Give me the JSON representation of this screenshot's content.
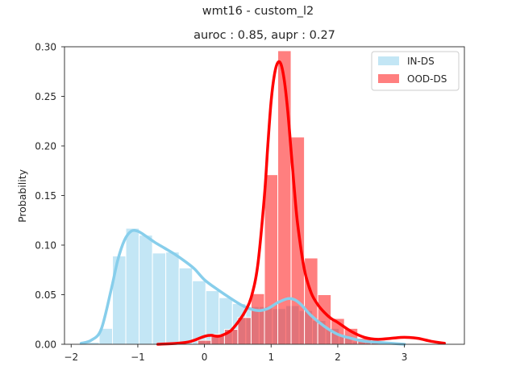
{
  "figure": {
    "suptitle": "wmt16 - custom_l2"
  },
  "chart_data": {
    "type": "histogram",
    "title": "auroc : 0.85, aupr : 0.27",
    "xlabel": "",
    "ylabel": "Probability",
    "xlim": [
      -2.1,
      3.9
    ],
    "ylim": [
      0,
      0.3
    ],
    "x_ticks": [
      -2,
      -1,
      0,
      1,
      2,
      3
    ],
    "x_tick_labels": [
      "−2",
      "−1",
      "0",
      "1",
      "2",
      "3"
    ],
    "y_ticks": [
      0,
      0.05,
      0.1,
      0.15,
      0.2,
      0.25,
      0.3
    ],
    "y_tick_labels": [
      "0.00",
      "0.05",
      "0.10",
      "0.15",
      "0.20",
      "0.25",
      "0.30"
    ],
    "grid": false,
    "legend_position": "top-right",
    "series": [
      {
        "name": "IN-DS",
        "color": "#87ceeb",
        "bar_opacity": 0.5,
        "bins": [
          {
            "x0": -1.78,
            "x1": -1.58,
            "value": 0.002
          },
          {
            "x0": -1.58,
            "x1": -1.38,
            "value": 0.016
          },
          {
            "x0": -1.38,
            "x1": -1.18,
            "value": 0.089
          },
          {
            "x0": -1.18,
            "x1": -0.98,
            "value": 0.117
          },
          {
            "x0": -0.98,
            "x1": -0.78,
            "value": 0.11
          },
          {
            "x0": -0.78,
            "x1": -0.58,
            "value": 0.092
          },
          {
            "x0": -0.58,
            "x1": -0.38,
            "value": 0.093
          },
          {
            "x0": -0.38,
            "x1": -0.18,
            "value": 0.077
          },
          {
            "x0": -0.18,
            "x1": 0.02,
            "value": 0.064
          },
          {
            "x0": 0.02,
            "x1": 0.22,
            "value": 0.054
          },
          {
            "x0": 0.22,
            "x1": 0.42,
            "value": 0.047
          },
          {
            "x0": 0.42,
            "x1": 0.62,
            "value": 0.041
          },
          {
            "x0": 0.62,
            "x1": 0.82,
            "value": 0.038
          },
          {
            "x0": 0.82,
            "x1": 1.02,
            "value": 0.038
          },
          {
            "x0": 1.02,
            "x1": 1.22,
            "value": 0.036
          },
          {
            "x0": 1.22,
            "x1": 1.42,
            "value": 0.039
          },
          {
            "x0": 1.42,
            "x1": 1.62,
            "value": 0.034
          },
          {
            "x0": 1.62,
            "x1": 1.82,
            "value": 0.024
          },
          {
            "x0": 1.82,
            "x1": 2.02,
            "value": 0.016
          },
          {
            "x0": 2.02,
            "x1": 2.22,
            "value": 0.008
          },
          {
            "x0": 2.22,
            "x1": 2.42,
            "value": 0.003
          },
          {
            "x0": 2.42,
            "x1": 2.62,
            "value": 0.002
          },
          {
            "x0": 2.62,
            "x1": 2.82,
            "value": 0.002
          },
          {
            "x0": 2.82,
            "x1": 3.02,
            "value": 0.001
          }
        ],
        "kde": {
          "x": [
            -1.85,
            -1.7,
            -1.55,
            -1.4,
            -1.3,
            -1.2,
            -1.1,
            -1.0,
            -0.9,
            -0.75,
            -0.6,
            -0.45,
            -0.3,
            -0.15,
            0.0,
            0.2,
            0.4,
            0.6,
            0.8,
            0.95,
            1.1,
            1.25,
            1.35,
            1.45,
            1.6,
            1.8,
            2.0,
            2.2,
            2.4,
            2.6,
            2.8,
            3.0
          ],
          "y": [
            0.001,
            0.004,
            0.015,
            0.055,
            0.085,
            0.105,
            0.114,
            0.114,
            0.11,
            0.103,
            0.097,
            0.091,
            0.084,
            0.076,
            0.065,
            0.055,
            0.046,
            0.038,
            0.034,
            0.036,
            0.042,
            0.046,
            0.045,
            0.04,
            0.029,
            0.018,
            0.01,
            0.006,
            0.003,
            0.002,
            0.001,
            0.0
          ]
        }
      },
      {
        "name": "OOD-DS",
        "color": "#ff0000",
        "bar_opacity": 0.5,
        "bins": [
          {
            "x0": -0.1,
            "x1": 0.1,
            "value": 0.004
          },
          {
            "x0": 0.1,
            "x1": 0.3,
            "value": 0.01
          },
          {
            "x0": 0.3,
            "x1": 0.5,
            "value": 0.015
          },
          {
            "x0": 0.5,
            "x1": 0.7,
            "value": 0.027
          },
          {
            "x0": 0.7,
            "x1": 0.9,
            "value": 0.051
          },
          {
            "x0": 0.9,
            "x1": 1.1,
            "value": 0.171
          },
          {
            "x0": 1.1,
            "x1": 1.3,
            "value": 0.296
          },
          {
            "x0": 1.3,
            "x1": 1.5,
            "value": 0.209
          },
          {
            "x0": 1.5,
            "x1": 1.7,
            "value": 0.087
          },
          {
            "x0": 1.7,
            "x1": 1.9,
            "value": 0.05
          },
          {
            "x0": 1.9,
            "x1": 2.1,
            "value": 0.026
          },
          {
            "x0": 2.1,
            "x1": 2.3,
            "value": 0.016
          },
          {
            "x0": 2.3,
            "x1": 2.5,
            "value": 0.006
          },
          {
            "x0": 2.5,
            "x1": 2.7,
            "value": 0.003
          },
          {
            "x0": 2.7,
            "x1": 2.9,
            "value": 0.002
          }
        ],
        "kde": {
          "x": [
            -0.7,
            -0.4,
            -0.2,
            0.0,
            0.1,
            0.2,
            0.3,
            0.4,
            0.5,
            0.6,
            0.7,
            0.8,
            0.9,
            0.95,
            1.0,
            1.05,
            1.1,
            1.15,
            1.2,
            1.25,
            1.3,
            1.35,
            1.4,
            1.5,
            1.6,
            1.7,
            1.8,
            1.9,
            2.0,
            2.2,
            2.4,
            2.6,
            2.8,
            3.0,
            3.2,
            3.4,
            3.6
          ],
          "y": [
            0.0,
            0.001,
            0.003,
            0.008,
            0.009,
            0.008,
            0.01,
            0.014,
            0.022,
            0.032,
            0.047,
            0.08,
            0.15,
            0.2,
            0.245,
            0.272,
            0.284,
            0.282,
            0.265,
            0.235,
            0.195,
            0.155,
            0.12,
            0.075,
            0.052,
            0.04,
            0.032,
            0.026,
            0.022,
            0.013,
            0.007,
            0.005,
            0.006,
            0.007,
            0.006,
            0.003,
            0.001
          ]
        }
      }
    ]
  }
}
